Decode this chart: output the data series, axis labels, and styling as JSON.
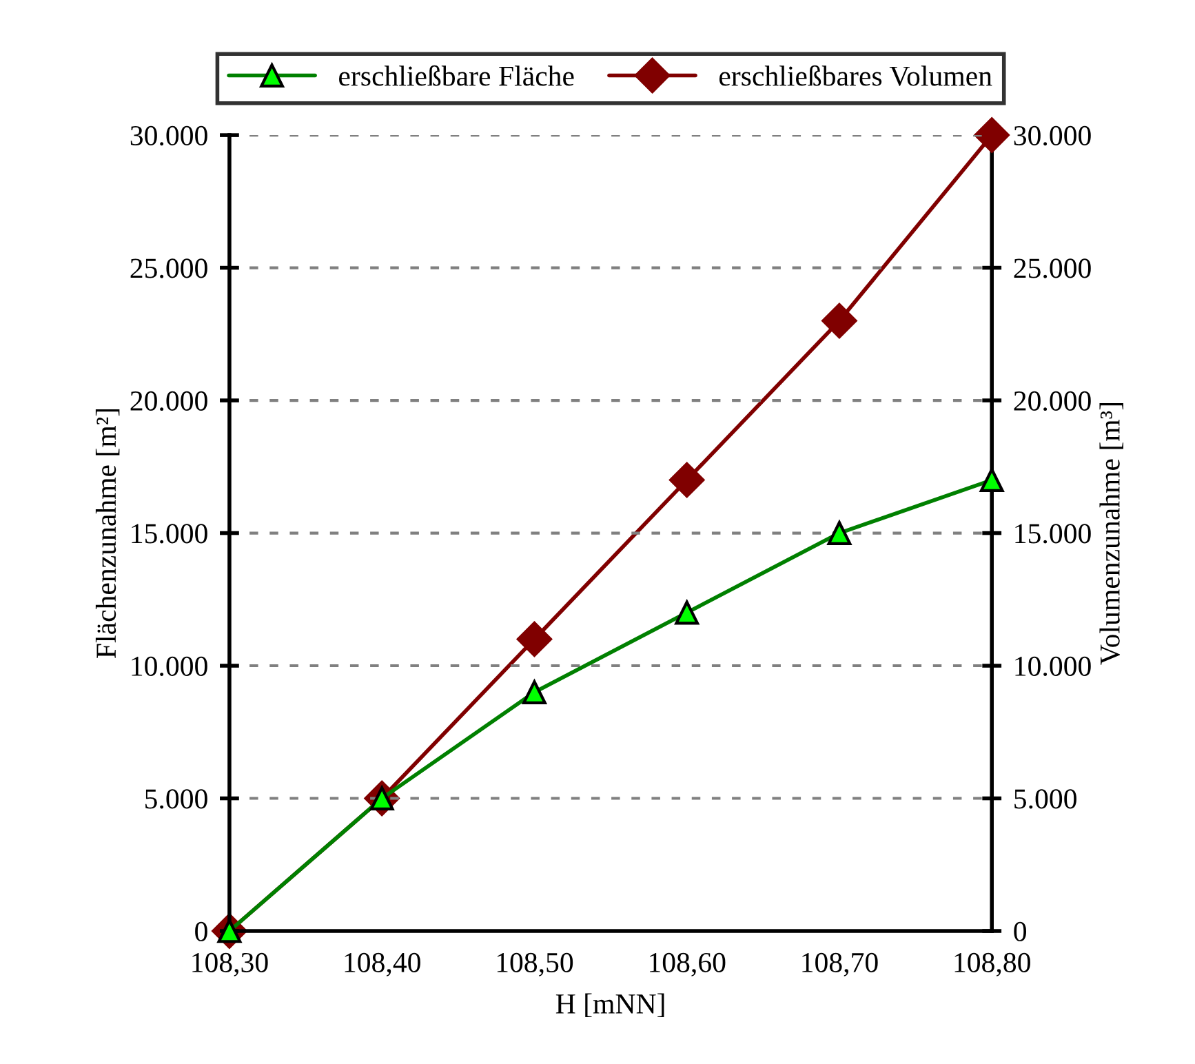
{
  "chart_data": {
    "type": "line",
    "xlabel": "H [mNN]",
    "ylabel": "Flächenzunahme [m²]",
    "y2label": "Volumenzunahme [m³]",
    "x": [
      108.3,
      108.4,
      108.5,
      108.6,
      108.7,
      108.8
    ],
    "series": [
      {
        "name": "erschließbare Fläche",
        "color": "#008000",
        "marker": "triangle",
        "values": [
          0,
          5000,
          9000,
          12000,
          15000,
          17000
        ]
      },
      {
        "name": "erschließbares Volumen",
        "color": "#800000",
        "marker": "diamond",
        "axis": "y2",
        "values": [
          0,
          5000,
          11000,
          17000,
          23000,
          30000
        ]
      }
    ],
    "xlim": [
      108.3,
      108.8
    ],
    "xticks": [
      {
        "value": 108.3,
        "label": "108,30"
      },
      {
        "value": 108.4,
        "label": "108,40"
      },
      {
        "value": 108.5,
        "label": "108,50"
      },
      {
        "value": 108.6,
        "label": "108,60"
      },
      {
        "value": 108.7,
        "label": "108,70"
      },
      {
        "value": 108.8,
        "label": "108,80"
      }
    ],
    "ylim": [
      0,
      30000
    ],
    "yticks": [
      0,
      {
        "value": 5000,
        "label": "5.000"
      },
      {
        "value": 10000,
        "label": "10.000"
      },
      {
        "value": 15000,
        "label": "15.000"
      },
      {
        "value": 20000,
        "label": "20.000"
      },
      {
        "value": 25000,
        "label": "25.000"
      },
      {
        "value": 30000,
        "label": "30.000"
      }
    ],
    "y2lim": [
      0,
      30000
    ],
    "y2ticks": [
      0,
      {
        "value": 5000,
        "label": "5.000"
      },
      {
        "value": 10000,
        "label": "10.000"
      },
      {
        "value": 15000,
        "label": "15.000"
      },
      {
        "value": 20000,
        "label": "20.000"
      },
      {
        "value": 25000,
        "label": "25.000"
      },
      {
        "value": 30000,
        "label": "30.000"
      }
    ],
    "grid": "y",
    "legend": "top",
    "line_style": "solid"
  }
}
